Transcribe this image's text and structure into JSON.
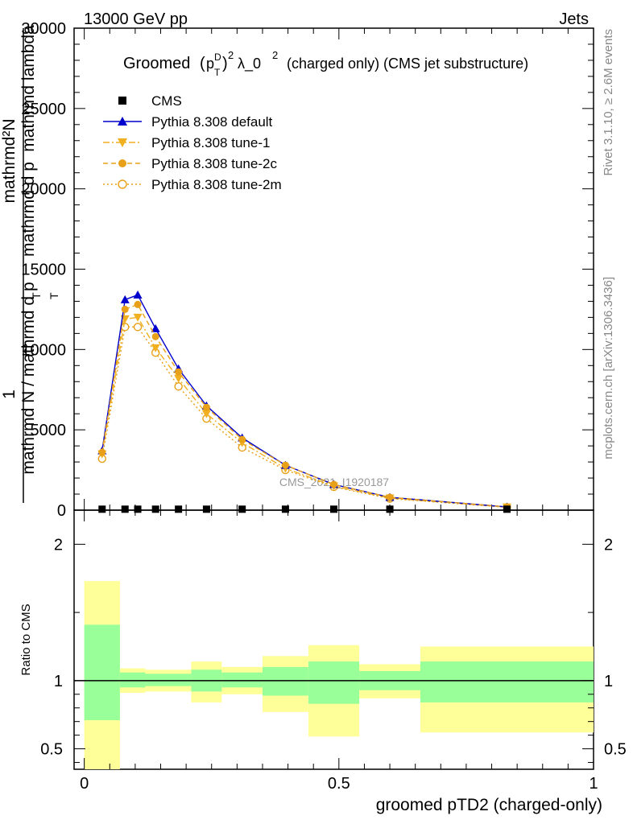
{
  "header": {
    "left": "13000 GeV pp",
    "right": "Jets"
  },
  "side": {
    "rivet": "Rivet 3.1.10, ≥ 2.6M events",
    "mcplots": "mcplots.cern.ch [arXiv:1306.3436]"
  },
  "watermark": "CMS_2021_I1920187",
  "chart_data": [
    {
      "type": "line",
      "title": "Groomed (p_T^D)^2 λ_0^2 (charged only) (CMS jet substructure)",
      "title_parts": {
        "word": "Groomed",
        "p": "p",
        "sup_d": "D",
        "sub_t": "T",
        "sq1": "2",
        "lambda": "λ_0",
        "sq2": "2",
        "rest": "(charged only) (CMS jet substructure)"
      },
      "ylabel_lines": [
        "1",
        "mathrmd N / mathrmd p_T mathrmd lambda",
        "mathrmd²N",
        "mathrmd p_T mathrmd lambda"
      ],
      "ylabel_frac": {
        "left_num": "1",
        "left_den": "mathrmd N / mathrmd d p",
        "left_sub": "T",
        "right_num": "mathrmd²N",
        "right_den": "mathrmd d p",
        "right_sub": "T",
        "right_tail": "mathrmd lambda"
      },
      "ylim": [
        0,
        30000
      ],
      "xlim": [
        -0.02,
        1.0
      ],
      "yticks": [
        0,
        5000,
        10000,
        15000,
        20000,
        25000,
        30000
      ],
      "yticklabels": [
        "0",
        "5000",
        "10000",
        "15000",
        "20000",
        "25000",
        "30000"
      ],
      "legend_position": "top-left",
      "x": [
        0.035,
        0.08,
        0.105,
        0.14,
        0.185,
        0.24,
        0.31,
        0.395,
        0.49,
        0.6,
        0.83
      ],
      "series": [
        {
          "name": "CMS",
          "color": "#000000",
          "marker": "square",
          "line": "none",
          "values": [
            60,
            60,
            60,
            60,
            60,
            60,
            60,
            60,
            60,
            60,
            60
          ]
        },
        {
          "name": "Pythia 8.308 default",
          "color": "#0000cc",
          "marker": "triangle-up",
          "line": "solid",
          "values": [
            3700,
            13100,
            13400,
            11300,
            8800,
            6500,
            4500,
            2800,
            1600,
            800,
            200
          ]
        },
        {
          "name": "Pythia 8.308 tune-1",
          "color": "#f0b020",
          "marker": "triangle-down",
          "line": "dashdot",
          "values": [
            3500,
            11900,
            12000,
            10100,
            8200,
            6000,
            4200,
            2600,
            1500,
            750,
            190
          ]
        },
        {
          "name": "Pythia 8.308 tune-2c",
          "color": "#e8a018",
          "marker": "circle",
          "line": "dashed",
          "values": [
            3600,
            12500,
            12800,
            10800,
            8600,
            6400,
            4400,
            2800,
            1600,
            800,
            200
          ]
        },
        {
          "name": "Pythia 8.308 tune-2m",
          "color": "#e8a018",
          "marker": "circle-open",
          "line": "dotted",
          "values": [
            3200,
            11400,
            11400,
            9800,
            7700,
            5700,
            3900,
            2500,
            1450,
            720,
            180
          ]
        }
      ]
    },
    {
      "type": "area",
      "ylabel": "Ratio to CMS",
      "xlabel": "groomed pTD2 (charged-only)",
      "ylim": [
        0.35,
        2.25
      ],
      "yticks": [
        0.5,
        1,
        2
      ],
      "yticklabels": [
        "0.5",
        "1",
        "2"
      ],
      "xticks": [
        0,
        0.5,
        1
      ],
      "xticklabels": [
        "0",
        "0.5",
        "1"
      ],
      "bins": [
        [
          0.0,
          0.07
        ],
        [
          0.07,
          0.12
        ],
        [
          0.12,
          0.21
        ],
        [
          0.21,
          0.27
        ],
        [
          0.27,
          0.35
        ],
        [
          0.35,
          0.44
        ],
        [
          0.44,
          0.54
        ],
        [
          0.54,
          0.66
        ],
        [
          0.66,
          1.0
        ]
      ],
      "band_inner": [
        [
          0.71,
          1.41
        ],
        [
          0.95,
          1.06
        ],
        [
          0.96,
          1.05
        ],
        [
          0.92,
          1.08
        ],
        [
          0.95,
          1.06
        ],
        [
          0.89,
          1.1
        ],
        [
          0.83,
          1.14
        ],
        [
          0.93,
          1.07
        ],
        [
          0.84,
          1.14
        ]
      ],
      "band_outer": [
        [
          0.35,
          1.73
        ],
        [
          0.91,
          1.09
        ],
        [
          0.92,
          1.08
        ],
        [
          0.84,
          1.14
        ],
        [
          0.9,
          1.1
        ],
        [
          0.77,
          1.18
        ],
        [
          0.59,
          1.26
        ],
        [
          0.87,
          1.12
        ],
        [
          0.62,
          1.25
        ]
      ],
      "colors": {
        "inner": "#99ff99",
        "outer": "#ffff99",
        "ref_line": "#000000"
      }
    }
  ]
}
